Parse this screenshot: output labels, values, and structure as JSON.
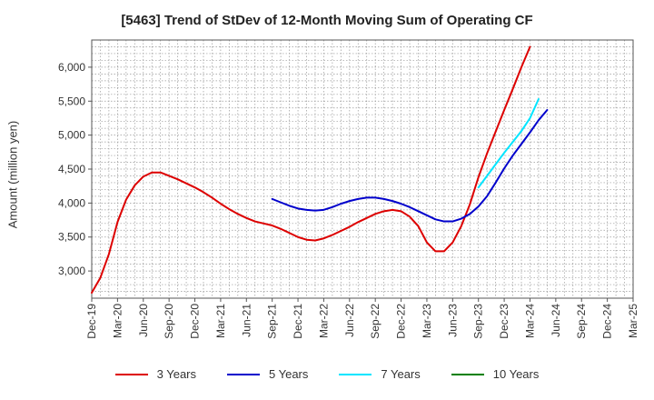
{
  "chart_data": {
    "type": "line",
    "title": "[5463]  Trend of StDev of 12-Month Moving Sum of Operating CF",
    "xlabel": "",
    "ylabel": "Amount (million yen)",
    "ylim": [
      2600,
      6400
    ],
    "yticks": [
      3000,
      3500,
      4000,
      4500,
      5000,
      5500,
      6000
    ],
    "ytick_labels": [
      "3,000",
      "3,500",
      "4,000",
      "4,500",
      "5,000",
      "5,500",
      "6,000"
    ],
    "x_categories": [
      "Dec-19",
      "Mar-20",
      "Jun-20",
      "Sep-20",
      "Dec-20",
      "Mar-21",
      "Jun-21",
      "Sep-21",
      "Dec-21",
      "Mar-22",
      "Jun-22",
      "Sep-22",
      "Dec-22",
      "Mar-23",
      "Jun-23",
      "Sep-23",
      "Dec-23",
      "Mar-24",
      "Jun-24",
      "Sep-24",
      "Dec-24",
      "Mar-25"
    ],
    "x_start": "Dec-19",
    "grid": true,
    "series": [
      {
        "name": "3 Years",
        "color": "#dd0000",
        "start_index": 0,
        "values": [
          2680,
          2900,
          3250,
          3720,
          4050,
          4260,
          4390,
          4450,
          4450,
          4400,
          4350,
          4290,
          4230,
          4160,
          4080,
          3990,
          3910,
          3840,
          3780,
          3730,
          3700,
          3670,
          3620,
          3560,
          3500,
          3460,
          3450,
          3480,
          3530,
          3590,
          3650,
          3720,
          3780,
          3840,
          3880,
          3900,
          3880,
          3800,
          3660,
          3420,
          3290,
          3290,
          3420,
          3660,
          3980,
          4380,
          4730,
          5050,
          5370,
          5680,
          6000,
          6300
        ]
      },
      {
        "name": "5 Years",
        "color": "#0000cc",
        "start_index": 21,
        "values": [
          4060,
          4010,
          3960,
          3920,
          3900,
          3890,
          3900,
          3940,
          3990,
          4030,
          4060,
          4080,
          4080,
          4060,
          4030,
          3990,
          3940,
          3880,
          3820,
          3760,
          3730,
          3730,
          3770,
          3840,
          3950,
          4100,
          4300,
          4510,
          4700,
          4870,
          5040,
          5220,
          5370
        ]
      },
      {
        "name": "7 Years",
        "color": "#00e5ff",
        "start_index": 45,
        "values": [
          4230,
          4400,
          4570,
          4740,
          4900,
          5060,
          5250,
          5530
        ]
      },
      {
        "name": "10 Years",
        "color": "#008000",
        "start_index": 0,
        "values": []
      }
    ]
  }
}
